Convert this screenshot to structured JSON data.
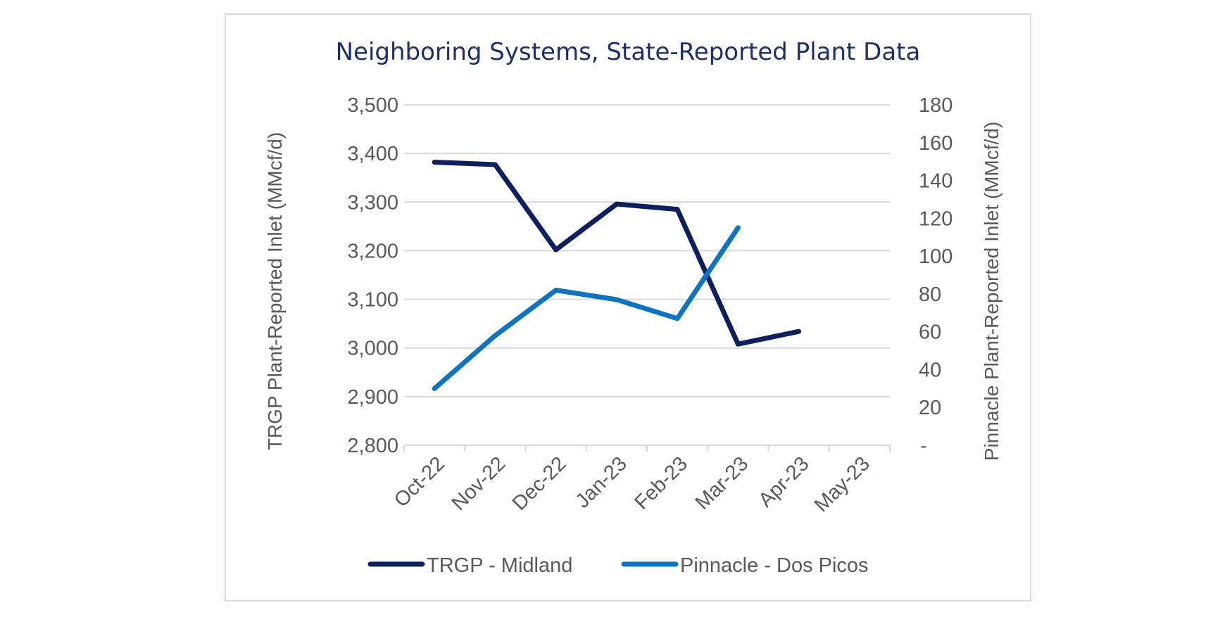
{
  "chart_data": {
    "type": "line",
    "title": "Neighboring Systems, State-Reported Plant Data",
    "categories": [
      "Oct-22",
      "Nov-22",
      "Dec-22",
      "Jan-23",
      "Feb-23",
      "Mar-23",
      "Apr-23",
      "May-23"
    ],
    "y_left": {
      "label": "TRGP Plant-Reported Inlet  (MMcf/d)",
      "range": [
        2800,
        3500
      ],
      "step": 100,
      "tick_labels": [
        "2,800",
        "2,900",
        "3,000",
        "3,100",
        "3,200",
        "3,300",
        "3,400",
        "3,500"
      ]
    },
    "y_right": {
      "label": "Pinnacle Plant-Reported Inlet (MMcf/d)",
      "range": [
        0,
        180
      ],
      "step": 20,
      "tick_labels": [
        "-",
        "20",
        "40",
        "60",
        "80",
        "100",
        "120",
        "140",
        "160",
        "180"
      ]
    },
    "series": [
      {
        "name": "TRGP - Midland",
        "axis": "left",
        "color": "#0d1f5c",
        "values": [
          3382,
          3377,
          3202,
          3296,
          3285,
          3008,
          3034,
          null
        ]
      },
      {
        "name": "Pinnacle - Dos Picos",
        "axis": "right",
        "color": "#0f73c1",
        "values": [
          30,
          58,
          82,
          77,
          67,
          115,
          null,
          null
        ]
      }
    ],
    "grid": true,
    "legend_position": "bottom"
  }
}
